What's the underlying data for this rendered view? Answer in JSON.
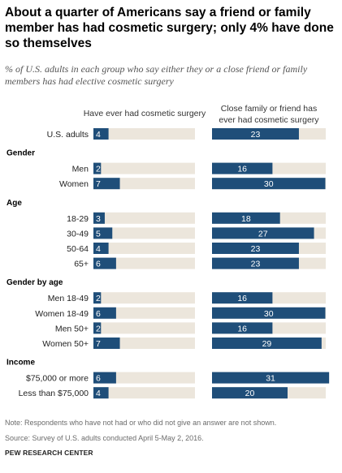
{
  "title": "About a quarter of Americans say a friend or family member has had cosmetic surgery; only 4% have done so themselves",
  "subtitle": "% of U.S. adults in each group who say either they or a close friend or family members has had elective cosmetic surgery",
  "note": "Note: Respondents who have not had or who did not give an answer are not shown.",
  "source": "Source: Survey of U.S. adults conducted April 5-May 2, 2016.",
  "brand": "PEW RESEARCH CENTER",
  "colors": {
    "bar": "#1f4e79",
    "track": "#ece6dc",
    "label": "#ffffff"
  },
  "chart_data": {
    "type": "bar",
    "orientation": "horizontal",
    "xlim": [
      0,
      40
    ],
    "grid": false,
    "series": [
      {
        "name": "Have ever had cosmetic surgery",
        "key": "self"
      },
      {
        "name": "Close family or friend has ever had cosmetic surgery",
        "key": "friend"
      }
    ],
    "groups": [
      {
        "heading": "",
        "rows": [
          {
            "label": "U.S. adults",
            "self": 4,
            "friend": 23
          }
        ]
      },
      {
        "heading": "Gender",
        "rows": [
          {
            "label": "Men",
            "self": 2,
            "friend": 16
          },
          {
            "label": "Women",
            "self": 7,
            "friend": 30
          }
        ]
      },
      {
        "heading": "Age",
        "rows": [
          {
            "label": "18-29",
            "self": 3,
            "friend": 18
          },
          {
            "label": "30-49",
            "self": 5,
            "friend": 27
          },
          {
            "label": "50-64",
            "self": 4,
            "friend": 23
          },
          {
            "label": "65+",
            "self": 6,
            "friend": 23
          }
        ]
      },
      {
        "heading": "Gender by age",
        "rows": [
          {
            "label": "Men 18-49",
            "self": 2,
            "friend": 16
          },
          {
            "label": "Women 18-49",
            "self": 6,
            "friend": 30
          },
          {
            "label": "Men 50+",
            "self": 2,
            "friend": 16
          },
          {
            "label": "Women 50+",
            "self": 7,
            "friend": 29
          }
        ]
      },
      {
        "heading": "Income",
        "rows": [
          {
            "label": "$75,000 or more",
            "self": 6,
            "friend": 31
          },
          {
            "label": "Less than $75,000",
            "self": 4,
            "friend": 20
          }
        ]
      }
    ]
  }
}
